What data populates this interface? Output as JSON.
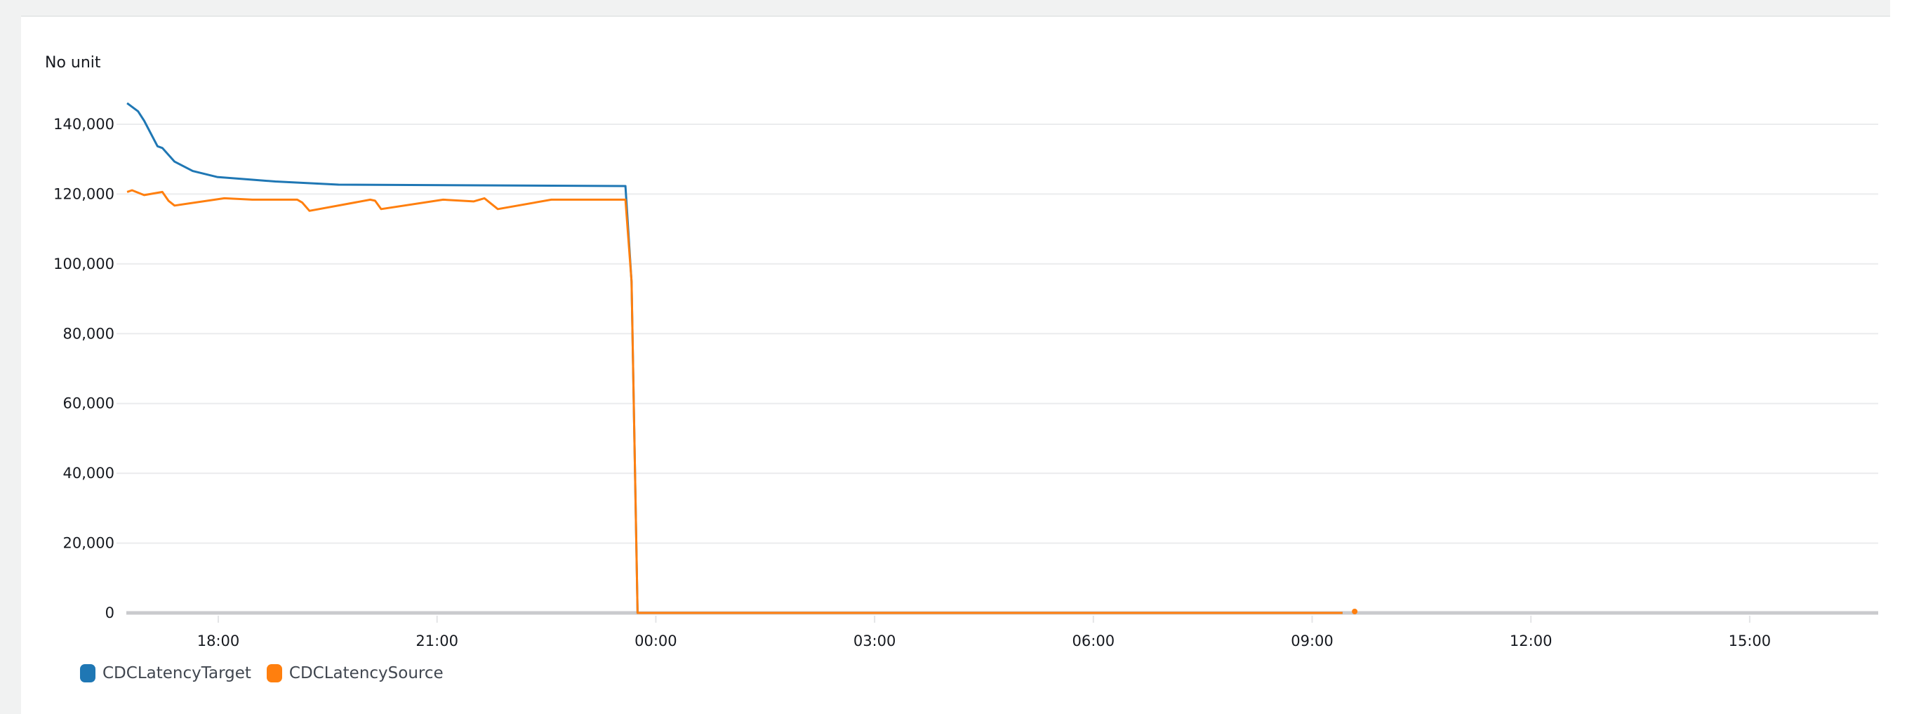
{
  "chart_data": {
    "type": "line",
    "unit_label": "No unit",
    "ylim": [
      0,
      146000
    ],
    "yticks": [
      0,
      20000,
      40000,
      60000,
      80000,
      100000,
      120000,
      140000
    ],
    "ytick_labels": [
      "0",
      "20,000",
      "40,000",
      "60,000",
      "80,000",
      "100,000",
      "120,000",
      "140,000"
    ],
    "xlim": [
      "16:44",
      "16:44 (+1 day)"
    ],
    "xticks": [
      "18:00",
      "21:00",
      "00:00",
      "03:00",
      "06:00",
      "09:00",
      "12:00",
      "15:00"
    ],
    "grid": true,
    "legend_placement": "bottom-left",
    "series": [
      {
        "name": "CDCLatencyTarget",
        "color": "#1f77b4",
        "points": [
          [
            "16:45",
            146060
          ],
          [
            "16:54",
            143700
          ],
          [
            "16:59",
            141000
          ],
          [
            "17:10",
            133700
          ],
          [
            "17:14",
            133200
          ],
          [
            "17:24",
            129300
          ],
          [
            "17:39",
            126600
          ],
          [
            "17:59",
            124900
          ],
          [
            "18:47",
            123600
          ],
          [
            "19:39",
            122700
          ],
          [
            "23:35",
            122300
          ],
          [
            "23:40",
            94900
          ],
          [
            "23:45",
            0
          ],
          [
            "09:25",
            0
          ]
        ]
      },
      {
        "name": "CDCLatencySource",
        "color": "#ff7f0e",
        "points": [
          [
            "16:45",
            120600
          ],
          [
            "16:49",
            121100
          ],
          [
            "16:59",
            119700
          ],
          [
            "17:14",
            120600
          ],
          [
            "17:19",
            118100
          ],
          [
            "17:24",
            116700
          ],
          [
            "18:05",
            118800
          ],
          [
            "18:28",
            118400
          ],
          [
            "19:05",
            118400
          ],
          [
            "19:09",
            117600
          ],
          [
            "19:15",
            115200
          ],
          [
            "20:05",
            118400
          ],
          [
            "20:09",
            118100
          ],
          [
            "20:14",
            115700
          ],
          [
            "21:05",
            118400
          ],
          [
            "21:30",
            117900
          ],
          [
            "21:39",
            118800
          ],
          [
            "21:50",
            115700
          ],
          [
            "22:34",
            118400
          ],
          [
            "23:35",
            118400
          ],
          [
            "23:40",
            95000
          ],
          [
            "23:45",
            0
          ],
          [
            "09:25",
            0
          ]
        ],
        "isolated_points": [
          [
            "09:35",
            0
          ]
        ]
      }
    ]
  }
}
